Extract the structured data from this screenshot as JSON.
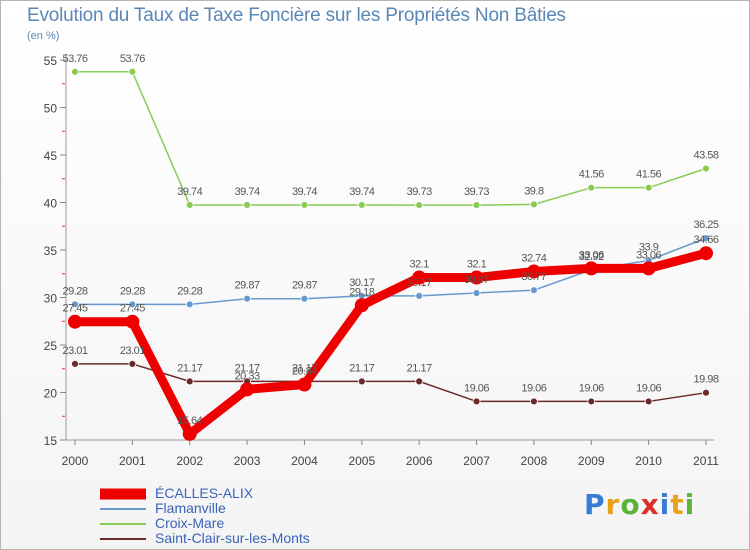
{
  "header": {
    "title": "Evolution du Taux de Taxe Foncière sur les Propriétés Non Bâties",
    "subtitle": "(en %)"
  },
  "logo": {
    "letters": [
      "P",
      "r",
      "o",
      "x",
      "i",
      "t",
      "i"
    ],
    "colors": [
      "#3a7bd5",
      "#e8a21c",
      "#5bb33a",
      "#d9302c",
      "#3a7bd5",
      "#e8a21c",
      "#5bb33a"
    ]
  },
  "chart_data": {
    "type": "line",
    "title": "Evolution du Taux de Taxe Foncière sur les Propriétés Non Bâties",
    "ylabel": "(en %)",
    "xlabel": "",
    "categories": [
      "2000",
      "2001",
      "2002",
      "2003",
      "2004",
      "2005",
      "2006",
      "2007",
      "2008",
      "2009",
      "2010",
      "2011"
    ],
    "ylim": [
      15,
      55
    ],
    "yticks": [
      15,
      20,
      25,
      30,
      35,
      40,
      45,
      50,
      55
    ],
    "grid": false,
    "series": [
      {
        "name": "ÉCALLES-ALIX",
        "color": "#ee0000",
        "values": [
          27.45,
          27.45,
          15.64,
          20.33,
          20.84,
          29.18,
          32.1,
          32.1,
          32.74,
          33.06,
          33.06,
          34.66
        ],
        "labels": [
          "27.45",
          "27.45",
          "15.64",
          "20.33",
          "20.84",
          "29.18",
          "32.1",
          "32.1",
          "32.74",
          "33.06",
          "33.06",
          "34.66"
        ]
      },
      {
        "name": "Flamanville",
        "color": "#6699cc",
        "values": [
          29.28,
          29.28,
          29.28,
          29.87,
          29.87,
          30.17,
          30.17,
          30.47,
          30.77,
          32.92,
          33.9,
          36.25
        ],
        "labels": [
          "29.28",
          "29.28",
          "29.28",
          "29.87",
          "29.87",
          "30.17",
          "30.17",
          "30.47",
          "30.77",
          "32.92",
          "33.9",
          "36.25"
        ]
      },
      {
        "name": "Croix-Mare",
        "color": "#88cc55",
        "values": [
          53.76,
          53.76,
          39.74,
          39.74,
          39.74,
          39.74,
          39.73,
          39.73,
          39.8,
          41.56,
          41.56,
          43.58
        ],
        "labels": [
          "53.76",
          "53.76",
          "39.74",
          "39.74",
          "39.74",
          "39.74",
          "39.73",
          "39.73",
          "39.8",
          "41.56",
          "41.56",
          "43.58"
        ]
      },
      {
        "name": "Saint-Clair-sur-les-Monts",
        "color": "#6b2a2a",
        "values": [
          23.01,
          23.01,
          21.17,
          21.17,
          21.17,
          21.17,
          21.17,
          19.06,
          19.06,
          19.06,
          19.06,
          19.98
        ],
        "labels": [
          "23.01",
          "23.01",
          "21.17",
          "21.17",
          "21.17",
          "21.17",
          "21.17",
          "19.06",
          "19.06",
          "19.06",
          "19.06",
          "19.98"
        ]
      }
    ],
    "legend": "bottom-left"
  }
}
